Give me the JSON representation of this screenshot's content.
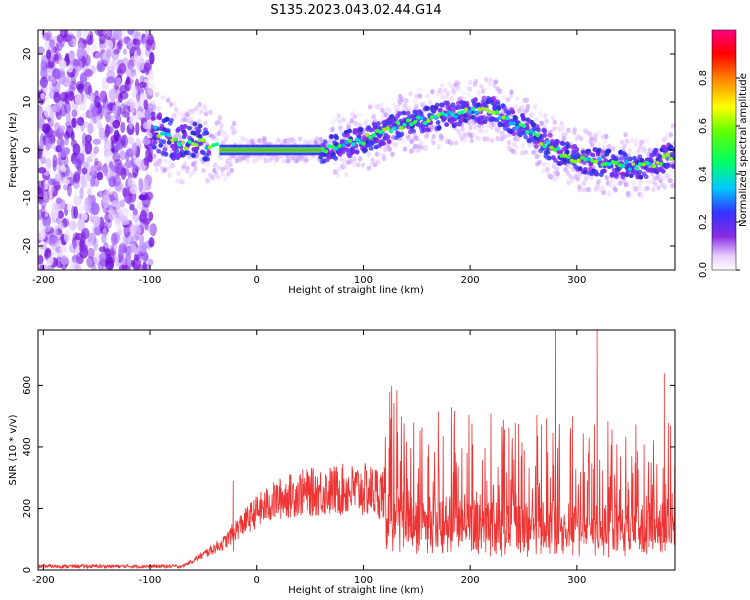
{
  "title": "S135.2023.043.02.44.G14",
  "chart_data": [
    {
      "type": "heatmap",
      "xlabel": "Height of straight line (km)",
      "ylabel": "Frequency (Hz)",
      "xlim": [
        -205,
        392
      ],
      "ylim": [
        -25,
        25
      ],
      "xticks": [
        -200,
        -100,
        0,
        100,
        200,
        300
      ],
      "yticks": [
        20,
        10,
        0,
        -10,
        -20
      ],
      "colorbar": {
        "label": "Normalized spectral amplitude",
        "range": [
          0,
          1
        ],
        "ticks": [
          "0.0",
          "0.2",
          "0.4",
          "0.6",
          "0.8"
        ]
      },
      "ridge": {
        "x": [
          -95,
          -85,
          -75,
          -65,
          -55,
          -45,
          -35,
          -25,
          -15,
          0,
          20,
          40,
          60,
          80,
          100,
          120,
          140,
          160,
          180,
          200,
          220,
          240,
          260,
          280,
          300,
          320,
          340,
          360,
          380,
          390
        ],
        "y": [
          4,
          3,
          1.5,
          1,
          2,
          1,
          0.5,
          0,
          0,
          0,
          0,
          0,
          0,
          1,
          2,
          4,
          5.5,
          6.5,
          7.5,
          8,
          8.5,
          6,
          3,
          0,
          -2,
          -2.5,
          -3,
          -3.5,
          -2,
          -1
        ]
      },
      "noise_region_x": [
        -205,
        -97
      ]
    },
    {
      "type": "line",
      "xlabel": "Height of straight line (km)",
      "ylabel": "SNR (10 * v/v)",
      "xlim": [
        -205,
        392
      ],
      "ylim": [
        0,
        780
      ],
      "xticks": [
        -200,
        -100,
        0,
        100,
        200,
        300
      ],
      "yticks": [
        0,
        200,
        400,
        600
      ],
      "series": [
        {
          "color": "#ee3333",
          "envelope": {
            "x": [
              -205,
              -70,
              -60,
              -50,
              -40,
              -30,
              -20,
              -10,
              0,
              20,
              40,
              60,
              80,
              100,
              120,
              150,
              200,
              250,
              300,
              350,
              392
            ],
            "y": [
              12,
              12,
              30,
              50,
              70,
              90,
              130,
              160,
              190,
              230,
              250,
              255,
              260,
              260,
              250,
              230,
              210,
              200,
              200,
              200,
              200
            ]
          },
          "spikes": {
            "x": [
              -22,
              280,
              319,
              382
            ],
            "y": [
              290,
              780,
              780,
              640
            ]
          }
        }
      ]
    }
  ]
}
